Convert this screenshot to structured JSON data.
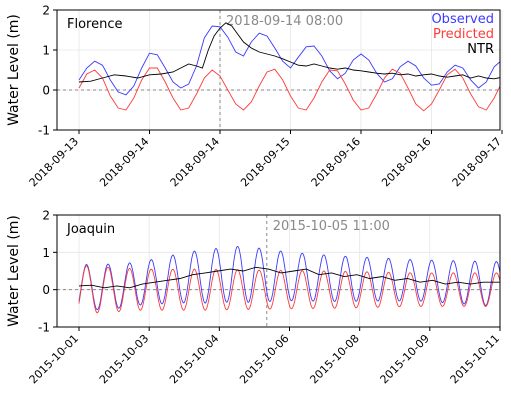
{
  "chart_data": [
    {
      "type": "line",
      "title": "Florence",
      "ylabel": "Water Level (m)",
      "xlabel": "",
      "ylim": [
        -1,
        2
      ],
      "yticks": [
        -1,
        0,
        1,
        2
      ],
      "xlim": [
        0,
        4.33
      ],
      "x_tick_labels": [
        "2018-09-13",
        "2018-09-14",
        "2018-09-14",
        "2018-09-15",
        "2018-09-16",
        "2018-09-16",
        "2018-09-17"
      ],
      "x_tick_positions": [
        0.0,
        0.72,
        1.44,
        2.16,
        2.88,
        3.6,
        4.32
      ],
      "event_marker": {
        "x": 1.44,
        "label": "2018-09-14 08:00"
      },
      "zero_line": true,
      "grid": true,
      "legend": {
        "placement": "top-right",
        "entries": [
          "Observed",
          "Predicted",
          "NTR"
        ]
      },
      "series": [
        {
          "name": "Observed",
          "color": "#3a3aff",
          "points": [
            [
              0,
              0.25
            ],
            [
              0.08,
              0.55
            ],
            [
              0.16,
              0.72
            ],
            [
              0.24,
              0.62
            ],
            [
              0.32,
              0.25
            ],
            [
              0.4,
              -0.05
            ],
            [
              0.48,
              -0.12
            ],
            [
              0.56,
              0.1
            ],
            [
              0.64,
              0.55
            ],
            [
              0.72,
              0.92
            ],
            [
              0.8,
              0.88
            ],
            [
              0.88,
              0.55
            ],
            [
              0.96,
              0.2
            ],
            [
              1.04,
              0.05
            ],
            [
              1.12,
              0.15
            ],
            [
              1.2,
              0.6
            ],
            [
              1.28,
              1.3
            ],
            [
              1.36,
              1.6
            ],
            [
              1.44,
              1.58
            ],
            [
              1.52,
              1.32
            ],
            [
              1.6,
              0.95
            ],
            [
              1.68,
              0.85
            ],
            [
              1.76,
              1.2
            ],
            [
              1.84,
              1.42
            ],
            [
              1.92,
              1.35
            ],
            [
              2.0,
              1.05
            ],
            [
              2.08,
              0.72
            ],
            [
              2.16,
              0.55
            ],
            [
              2.24,
              0.82
            ],
            [
              2.32,
              1.08
            ],
            [
              2.4,
              1.1
            ],
            [
              2.48,
              0.85
            ],
            [
              2.56,
              0.48
            ],
            [
              2.64,
              0.28
            ],
            [
              2.72,
              0.42
            ],
            [
              2.8,
              0.75
            ],
            [
              2.88,
              0.9
            ],
            [
              2.96,
              0.75
            ],
            [
              3.04,
              0.42
            ],
            [
              3.12,
              0.2
            ],
            [
              3.2,
              0.28
            ],
            [
              3.28,
              0.58
            ],
            [
              3.36,
              0.72
            ],
            [
              3.44,
              0.6
            ],
            [
              3.52,
              0.3
            ],
            [
              3.6,
              0.12
            ],
            [
              3.68,
              0.15
            ],
            [
              3.76,
              0.45
            ],
            [
              3.84,
              0.62
            ],
            [
              3.92,
              0.55
            ],
            [
              4.0,
              0.25
            ],
            [
              4.08,
              0.05
            ],
            [
              4.16,
              0.2
            ],
            [
              4.24,
              0.58
            ],
            [
              4.32,
              0.75
            ],
            [
              4.4,
              0.7
            ],
            [
              4.48,
              0.45
            ],
            [
              4.56,
              0.25
            ],
            [
              4.64,
              0.18
            ]
          ]
        },
        {
          "name": "Predicted",
          "color": "#ff3a3a",
          "points": [
            [
              0,
              0.05
            ],
            [
              0.08,
              0.4
            ],
            [
              0.16,
              0.5
            ],
            [
              0.24,
              0.3
            ],
            [
              0.32,
              -0.15
            ],
            [
              0.4,
              -0.45
            ],
            [
              0.48,
              -0.5
            ],
            [
              0.56,
              -0.2
            ],
            [
              0.64,
              0.25
            ],
            [
              0.72,
              0.55
            ],
            [
              0.8,
              0.55
            ],
            [
              0.88,
              0.2
            ],
            [
              0.96,
              -0.2
            ],
            [
              1.04,
              -0.5
            ],
            [
              1.12,
              -0.45
            ],
            [
              1.2,
              -0.1
            ],
            [
              1.28,
              0.3
            ],
            [
              1.36,
              0.5
            ],
            [
              1.44,
              0.35
            ],
            [
              1.52,
              0.0
            ],
            [
              1.6,
              -0.35
            ],
            [
              1.68,
              -0.5
            ],
            [
              1.76,
              -0.3
            ],
            [
              1.84,
              0.1
            ],
            [
              1.92,
              0.45
            ],
            [
              2.0,
              0.52
            ],
            [
              2.08,
              0.25
            ],
            [
              2.16,
              -0.15
            ],
            [
              2.24,
              -0.45
            ],
            [
              2.32,
              -0.5
            ],
            [
              2.4,
              -0.2
            ],
            [
              2.48,
              0.2
            ],
            [
              2.56,
              0.5
            ],
            [
              2.64,
              0.48
            ],
            [
              2.72,
              0.15
            ],
            [
              2.8,
              -0.25
            ],
            [
              2.88,
              -0.5
            ],
            [
              2.96,
              -0.45
            ],
            [
              3.04,
              -0.1
            ],
            [
              3.12,
              0.3
            ],
            [
              3.2,
              0.52
            ],
            [
              3.28,
              0.42
            ],
            [
              3.36,
              0.05
            ],
            [
              3.44,
              -0.35
            ],
            [
              3.52,
              -0.52
            ],
            [
              3.6,
              -0.35
            ],
            [
              3.68,
              0.0
            ],
            [
              3.76,
              0.38
            ],
            [
              3.84,
              0.52
            ],
            [
              3.92,
              0.3
            ],
            [
              4.0,
              -0.1
            ],
            [
              4.08,
              -0.42
            ],
            [
              4.16,
              -0.5
            ],
            [
              4.24,
              -0.2
            ],
            [
              4.32,
              0.2
            ],
            [
              4.4,
              0.48
            ],
            [
              4.48,
              0.42
            ],
            [
              4.56,
              0.05
            ],
            [
              4.64,
              -0.3
            ]
          ]
        },
        {
          "name": "NTR",
          "color": "#000000",
          "points": [
            [
              0,
              0.2
            ],
            [
              0.12,
              0.22
            ],
            [
              0.24,
              0.3
            ],
            [
              0.36,
              0.38
            ],
            [
              0.48,
              0.35
            ],
            [
              0.6,
              0.3
            ],
            [
              0.72,
              0.38
            ],
            [
              0.84,
              0.4
            ],
            [
              0.96,
              0.45
            ],
            [
              1.04,
              0.55
            ],
            [
              1.12,
              0.65
            ],
            [
              1.2,
              0.6
            ],
            [
              1.26,
              0.55
            ],
            [
              1.32,
              1.0
            ],
            [
              1.38,
              1.35
            ],
            [
              1.44,
              1.55
            ],
            [
              1.5,
              1.68
            ],
            [
              1.56,
              1.6
            ],
            [
              1.62,
              1.4
            ],
            [
              1.68,
              1.2
            ],
            [
              1.76,
              1.05
            ],
            [
              1.84,
              0.95
            ],
            [
              1.92,
              0.9
            ],
            [
              2.0,
              0.85
            ],
            [
              2.08,
              0.78
            ],
            [
              2.16,
              0.7
            ],
            [
              2.24,
              0.62
            ],
            [
              2.32,
              0.6
            ],
            [
              2.4,
              0.65
            ],
            [
              2.48,
              0.6
            ],
            [
              2.56,
              0.55
            ],
            [
              2.64,
              0.52
            ],
            [
              2.72,
              0.55
            ],
            [
              2.8,
              0.5
            ],
            [
              2.88,
              0.48
            ],
            [
              2.96,
              0.45
            ],
            [
              3.04,
              0.42
            ],
            [
              3.12,
              0.4
            ],
            [
              3.2,
              0.42
            ],
            [
              3.28,
              0.38
            ],
            [
              3.36,
              0.4
            ],
            [
              3.44,
              0.35
            ],
            [
              3.52,
              0.38
            ],
            [
              3.6,
              0.4
            ],
            [
              3.68,
              0.35
            ],
            [
              3.76,
              0.32
            ],
            [
              3.84,
              0.35
            ],
            [
              3.92,
              0.38
            ],
            [
              4.0,
              0.3
            ],
            [
              4.08,
              0.35
            ],
            [
              4.16,
              0.3
            ],
            [
              4.24,
              0.28
            ],
            [
              4.32,
              0.32
            ],
            [
              4.4,
              0.3
            ],
            [
              4.48,
              0.28
            ],
            [
              4.56,
              0.3
            ],
            [
              4.64,
              0.3
            ]
          ]
        }
      ]
    },
    {
      "type": "line",
      "title": "Joaquin",
      "ylabel": "Water Level (m)",
      "xlabel": "",
      "ylim": [
        -1,
        2
      ],
      "yticks": [
        -1,
        0,
        1,
        2
      ],
      "xlim": [
        0,
        10
      ],
      "x_tick_labels": [
        "2015-10-01",
        "2015-10-03",
        "2015-10-04",
        "2015-10-06",
        "2015-10-08",
        "2015-10-09",
        "2015-10-11"
      ],
      "x_tick_positions": [
        0,
        1.667,
        3.333,
        5.0,
        6.667,
        8.333,
        10.0
      ],
      "event_marker": {
        "x": 4.46,
        "label": "2015-10-05 11:00"
      },
      "zero_line": true,
      "grid": true,
      "series": [
        {
          "name": "Observed",
          "color": "#3a3aff",
          "oscillation": {
            "period": 0.5125,
            "phase": 0.05,
            "amp_profile": [
              [
                0,
                0.62
              ],
              [
                1.5,
                0.58
              ],
              [
                3.0,
                0.72
              ],
              [
                4.0,
                0.75
              ],
              [
                5.0,
                0.65
              ],
              [
                6.5,
                0.6
              ],
              [
                8.0,
                0.55
              ],
              [
                10.0,
                0.6
              ]
            ],
            "offset_profile": [
              [
                0,
                0.05
              ],
              [
                1.0,
                0.1
              ],
              [
                2.5,
                0.32
              ],
              [
                3.8,
                0.42
              ],
              [
                4.5,
                0.38
              ],
              [
                6.0,
                0.3
              ],
              [
                8.0,
                0.25
              ],
              [
                10.0,
                0.15
              ]
            ]
          }
        },
        {
          "name": "Predicted",
          "color": "#ff3a3a",
          "oscillation": {
            "period": 0.5125,
            "phase": 0.05,
            "amp_profile": [
              [
                0,
                0.65
              ],
              [
                1.5,
                0.55
              ],
              [
                3.0,
                0.55
              ],
              [
                4.5,
                0.52
              ],
              [
                6.0,
                0.5
              ],
              [
                8.0,
                0.45
              ],
              [
                10.0,
                0.45
              ]
            ],
            "offset_profile": [
              [
                0,
                0.0
              ],
              [
                10.0,
                0.0
              ]
            ]
          }
        },
        {
          "name": "NTR",
          "color": "#000000",
          "points": [
            [
              0,
              0.1
            ],
            [
              0.3,
              0.12
            ],
            [
              0.6,
              0.05
            ],
            [
              0.9,
              0.1
            ],
            [
              1.2,
              0.05
            ],
            [
              1.5,
              0.15
            ],
            [
              1.8,
              0.2
            ],
            [
              2.1,
              0.25
            ],
            [
              2.4,
              0.3
            ],
            [
              2.7,
              0.4
            ],
            [
              3.0,
              0.45
            ],
            [
              3.3,
              0.5
            ],
            [
              3.6,
              0.55
            ],
            [
              3.9,
              0.5
            ],
            [
              4.2,
              0.6
            ],
            [
              4.5,
              0.55
            ],
            [
              4.8,
              0.45
            ],
            [
              5.1,
              0.5
            ],
            [
              5.4,
              0.55
            ],
            [
              5.7,
              0.4
            ],
            [
              6.0,
              0.45
            ],
            [
              6.3,
              0.35
            ],
            [
              6.6,
              0.4
            ],
            [
              6.9,
              0.3
            ],
            [
              7.2,
              0.35
            ],
            [
              7.5,
              0.25
            ],
            [
              7.8,
              0.3
            ],
            [
              8.1,
              0.2
            ],
            [
              8.4,
              0.25
            ],
            [
              8.7,
              0.15
            ],
            [
              9.0,
              0.2
            ],
            [
              9.3,
              0.15
            ],
            [
              9.6,
              0.2
            ],
            [
              10.0,
              0.2
            ]
          ]
        }
      ]
    }
  ]
}
